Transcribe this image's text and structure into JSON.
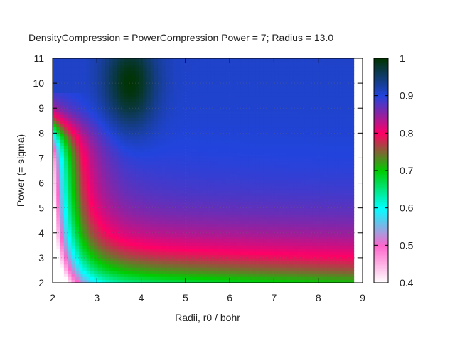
{
  "chart_data": {
    "type": "heatmap",
    "title": "DensityCompression = PowerCompression  Power = 7; Radius = 13.0",
    "xlabel": "Radii, r0 / bohr",
    "ylabel": "Power (= sigma)",
    "xlim": [
      2,
      9
    ],
    "ylim": [
      2,
      11
    ],
    "x_ticks": [
      "2",
      "3",
      "4",
      "5",
      "6",
      "7",
      "8",
      "9"
    ],
    "y_ticks": [
      "2",
      "3",
      "4",
      "5",
      "6",
      "7",
      "8",
      "9",
      "10",
      "11"
    ],
    "data_x_range": [
      2.0,
      8.8
    ],
    "data_y_range": [
      2.0,
      11.0
    ],
    "colorbar": {
      "range": [
        0.4,
        1.0
      ],
      "ticks": [
        "0.4",
        "0.5",
        "0.6",
        "0.7",
        "0.8",
        "0.9",
        "1"
      ],
      "palette": [
        "#ffffff",
        "#ff66cc",
        "#00ffff",
        "#00cc00",
        "#ff0066",
        "#2244dd",
        "#003300"
      ]
    },
    "grid": true
  }
}
